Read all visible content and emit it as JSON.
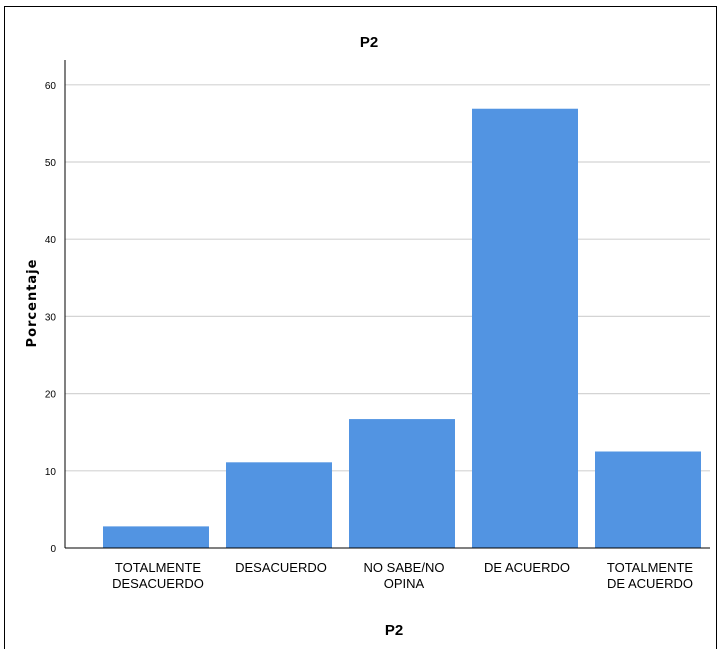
{
  "chart_data": {
    "type": "bar",
    "title": "P2",
    "xlabel": "P2",
    "ylabel": "Porcentaje",
    "ylim": [
      0,
      63
    ],
    "yticks": [
      0,
      10,
      20,
      30,
      40,
      50,
      60
    ],
    "grid": true,
    "categories": [
      [
        "TOTALMENTE",
        "DESACUERDO"
      ],
      [
        "DESACUERDO"
      ],
      [
        "NO SABE/NO",
        "OPINA"
      ],
      [
        "DE ACUERDO"
      ],
      [
        "TOTALMENTE",
        "DE ACUERDO"
      ]
    ],
    "values": [
      2.8,
      11.1,
      16.7,
      56.9,
      12.5
    ],
    "colors": {
      "bar": "#5294e2",
      "grid": "#d4d4d4",
      "axis": "#000000"
    }
  }
}
